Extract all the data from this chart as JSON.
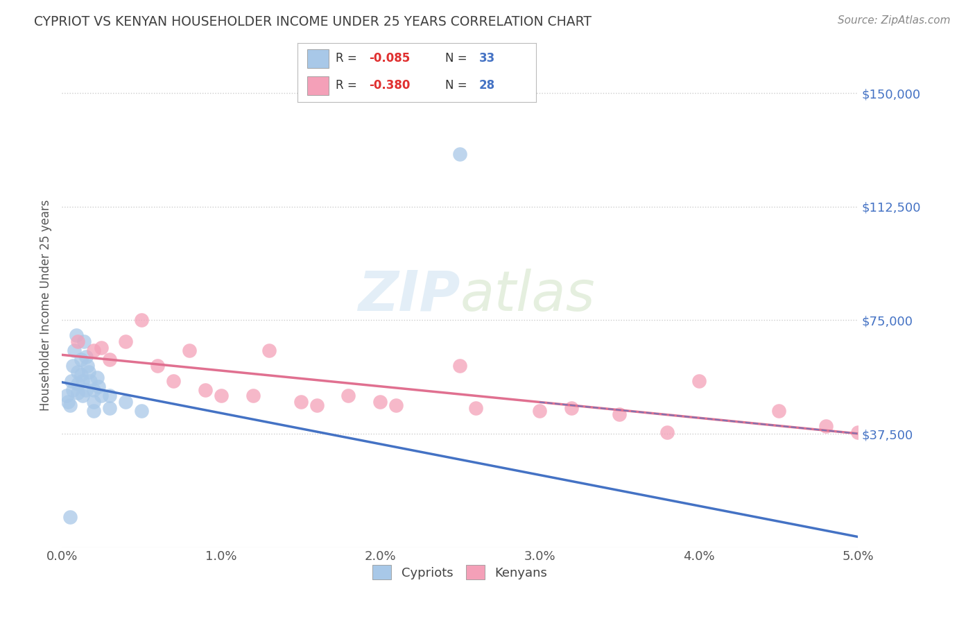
{
  "title": "CYPRIOT VS KENYAN HOUSEHOLDER INCOME UNDER 25 YEARS CORRELATION CHART",
  "source": "Source: ZipAtlas.com",
  "ylabel": "Householder Income Under 25 years",
  "ytick_labels": [
    "$37,500",
    "$75,000",
    "$112,500",
    "$150,000"
  ],
  "ytick_values": [
    37500,
    75000,
    112500,
    150000
  ],
  "xlim": [
    0.0,
    0.05
  ],
  "ylim": [
    0,
    160000
  ],
  "legend_xlabel1": "Cypriots",
  "legend_xlabel2": "Kenyans",
  "cypriot_color": "#a8c8e8",
  "kenyan_color": "#f4a0b8",
  "cypriot_line_color": "#4472c4",
  "kenyan_line_color": "#e07090",
  "grid_color": "#cccccc",
  "background_color": "#ffffff",
  "title_color": "#404040",
  "axis_label_color": "#555555",
  "ytick_color": "#4472c4",
  "xtick_color": "#555555",
  "cypriot_scatter_x": [
    0.0003,
    0.0004,
    0.0005,
    0.0006,
    0.0007,
    0.0007,
    0.0008,
    0.0009,
    0.001,
    0.001,
    0.001,
    0.0012,
    0.0012,
    0.0013,
    0.0013,
    0.0014,
    0.0015,
    0.0015,
    0.0016,
    0.0017,
    0.0018,
    0.002,
    0.002,
    0.002,
    0.0022,
    0.0023,
    0.0025,
    0.003,
    0.003,
    0.004,
    0.005,
    0.0005,
    0.025
  ],
  "cypriot_scatter_y": [
    50000,
    48000,
    47000,
    55000,
    60000,
    52000,
    65000,
    70000,
    58000,
    54000,
    51000,
    62000,
    57000,
    55000,
    50000,
    68000,
    63000,
    52000,
    60000,
    58000,
    55000,
    52000,
    48000,
    45000,
    56000,
    53000,
    50000,
    50000,
    46000,
    48000,
    45000,
    10000,
    130000
  ],
  "kenyan_scatter_x": [
    0.001,
    0.002,
    0.0025,
    0.003,
    0.004,
    0.005,
    0.006,
    0.007,
    0.008,
    0.009,
    0.01,
    0.012,
    0.013,
    0.015,
    0.016,
    0.018,
    0.02,
    0.021,
    0.025,
    0.026,
    0.03,
    0.032,
    0.035,
    0.038,
    0.04,
    0.045,
    0.048,
    0.05
  ],
  "kenyan_scatter_y": [
    68000,
    65000,
    66000,
    62000,
    68000,
    75000,
    60000,
    55000,
    65000,
    52000,
    50000,
    50000,
    65000,
    48000,
    47000,
    50000,
    48000,
    47000,
    60000,
    46000,
    45000,
    46000,
    44000,
    38000,
    55000,
    45000,
    40000,
    38000
  ]
}
